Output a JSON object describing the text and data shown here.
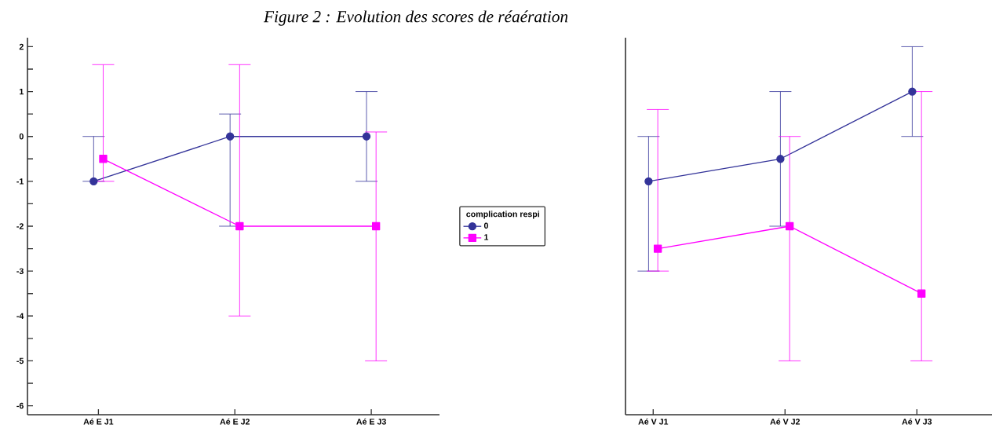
{
  "chart_data": [
    {
      "type": "line",
      "title": "Figure 2 : Evolution des scores de réaération",
      "legend_title": "complication respi",
      "legend": "right",
      "categories": [
        "Aé E J1",
        "Aé E J2",
        "Aé E J3"
      ],
      "ylim": [
        -6.2,
        2.2
      ],
      "yticks": [
        {
          "value": -6,
          "label": "-6"
        },
        {
          "value": -5.5,
          "label": null
        },
        {
          "value": -5,
          "label": "-5"
        },
        {
          "value": -4.5,
          "label": null
        },
        {
          "value": -4,
          "label": "-4"
        },
        {
          "value": -3.5,
          "label": null
        },
        {
          "value": -3,
          "label": "-3"
        },
        {
          "value": -2.5,
          "label": null
        },
        {
          "value": -2,
          "label": "-2"
        },
        {
          "value": -1.5,
          "label": null
        },
        {
          "value": -1,
          "label": "-1"
        },
        {
          "value": -0.5,
          "label": null
        },
        {
          "value": 0,
          "label": "0"
        },
        {
          "value": 0.5,
          "label": null
        },
        {
          "value": 1,
          "label": "1"
        },
        {
          "value": 1.5,
          "label": null
        },
        {
          "value": 2,
          "label": "2"
        }
      ],
      "series": [
        {
          "name": "0",
          "color": "#333399",
          "marker": "circle",
          "values": [
            -1,
            0,
            0
          ],
          "errors": [
            [
              -1,
              0
            ],
            [
              -2,
              0.5
            ],
            [
              -1,
              1
            ]
          ]
        },
        {
          "name": "1",
          "color": "#ff00ff",
          "marker": "square",
          "values": [
            -0.5,
            -2,
            -2
          ],
          "errors": [
            [
              -1,
              1.6
            ],
            [
              -4,
              1.6
            ],
            [
              -5,
              0.1
            ]
          ]
        }
      ]
    },
    {
      "type": "line",
      "tick_labels": "x",
      "categories": [
        "Aé V J1",
        "Aé V J2",
        "Aé V J3"
      ],
      "ylim": [
        -6.2,
        2.2
      ],
      "series": [
        {
          "color": "#333399",
          "marker": "circle",
          "values": [
            -1,
            -0.5,
            1
          ],
          "errors": [
            [
              -3,
              0
            ],
            [
              -2,
              1
            ],
            [
              0,
              2
            ]
          ]
        },
        {
          "color": "#ff00ff",
          "marker": "square",
          "values": [
            -2.5,
            -2,
            -3.5
          ],
          "errors": [
            [
              -3,
              0.6
            ],
            [
              -5,
              0
            ],
            [
              -5,
              1
            ]
          ]
        }
      ]
    }
  ]
}
